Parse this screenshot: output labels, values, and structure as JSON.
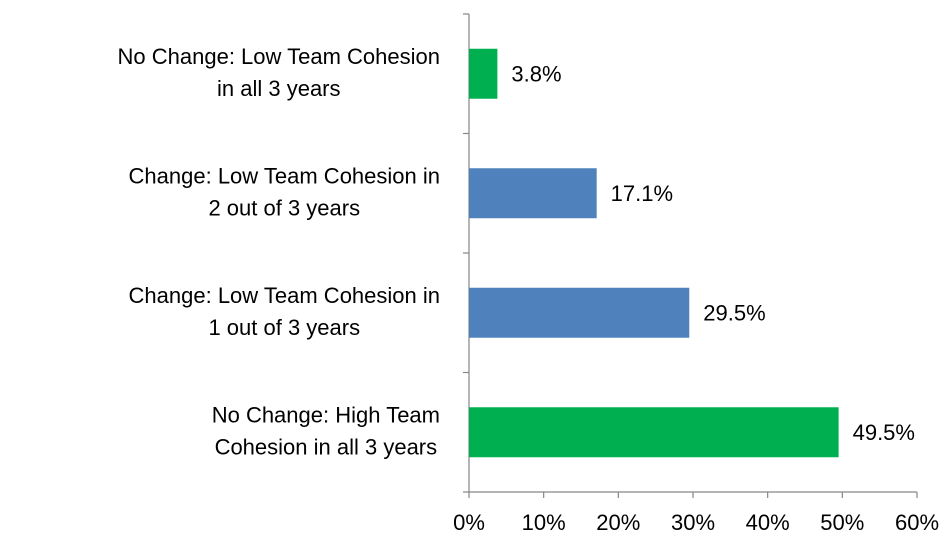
{
  "chart_data": {
    "type": "bar",
    "orientation": "horizontal",
    "categories": [
      "No Change: Low Team Cohesion\nin all 3 years",
      "Change: Low Team Cohesion in\n2 out of 3 years",
      "Change: Low Team Cohesion in\n1 out of 3 years",
      "No Change: High Team\nCohesion in all 3 years"
    ],
    "values": [
      3.8,
      17.1,
      29.5,
      49.5
    ],
    "value_labels": [
      "3.8%",
      "17.1%",
      "29.5%",
      "49.5%"
    ],
    "colors": [
      "#00b050",
      "#4f81bd",
      "#4f81bd",
      "#00b050"
    ],
    "xlim": [
      0,
      60
    ],
    "xticks": [
      {
        "value": 0,
        "label": "0%"
      },
      {
        "value": 10,
        "label": "10%"
      },
      {
        "value": 20,
        "label": "20%"
      },
      {
        "value": 30,
        "label": "30%"
      },
      {
        "value": 40,
        "label": "40%"
      },
      {
        "value": 50,
        "label": "50%"
      },
      {
        "value": 60,
        "label": "60%"
      }
    ],
    "grid": false
  }
}
